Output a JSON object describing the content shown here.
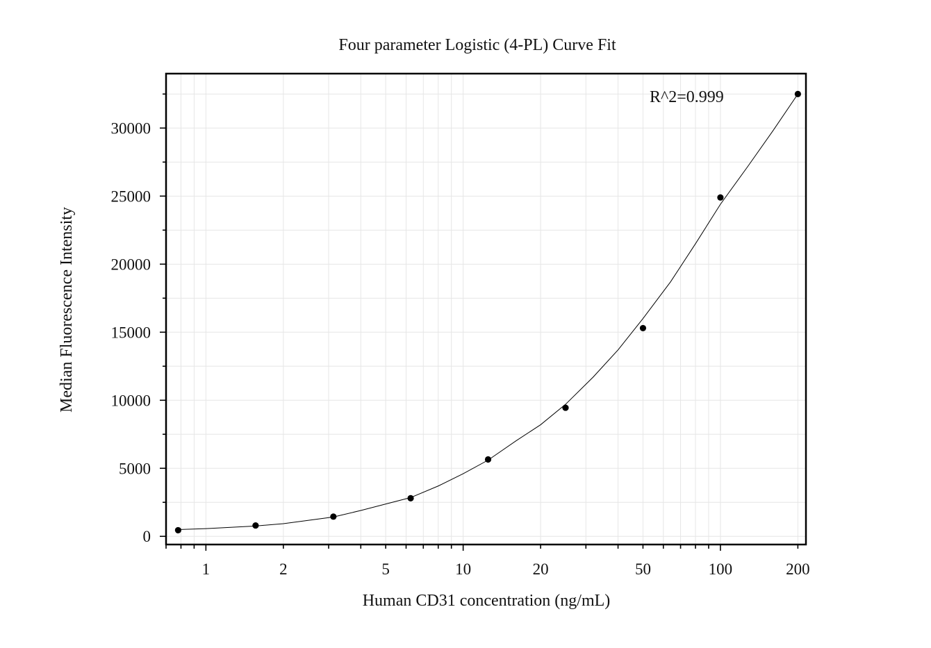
{
  "chart_data": {
    "type": "scatter",
    "title": "Four parameter Logistic (4-PL) Curve Fit",
    "xlabel": "Human CD31 concentration (ng/mL)",
    "ylabel": "Median Fluorescence Intensity",
    "x_scale": "log",
    "xlim": [
      0.7,
      215
    ],
    "ylim": [
      -600,
      34000
    ],
    "x_ticks": [
      1,
      2,
      5,
      10,
      20,
      50,
      100,
      200
    ],
    "x_tick_labels": [
      "1",
      "2",
      "5",
      "10",
      "20",
      "50",
      "100",
      "200"
    ],
    "y_ticks": [
      0,
      5000,
      10000,
      15000,
      20000,
      25000,
      30000
    ],
    "y_tick_labels": [
      "0",
      "5000",
      "10000",
      "15000",
      "20000",
      "25000",
      "30000"
    ],
    "grid": true,
    "annotation": "R^2=0.999",
    "series": [
      {
        "x": [
          0.78,
          1.56,
          3.13,
          6.25,
          12.5,
          25,
          50,
          100,
          200
        ],
        "values": [
          450,
          800,
          1450,
          2800,
          5650,
          9450,
          15300,
          24900,
          32500
        ]
      }
    ],
    "fit": {
      "model": "4PL",
      "x": [
        0.78,
        1,
        1.56,
        2,
        3.13,
        4,
        6.25,
        8,
        10,
        12.5,
        16,
        20,
        25,
        32,
        40,
        50,
        64,
        80,
        100,
        128,
        160,
        200
      ],
      "values": [
        500,
        570,
        760,
        930,
        1420,
        1900,
        2850,
        3700,
        4600,
        5600,
        7000,
        8200,
        9700,
        11700,
        13700,
        16000,
        18700,
        21500,
        24400,
        27200,
        29800,
        32500
      ]
    }
  }
}
